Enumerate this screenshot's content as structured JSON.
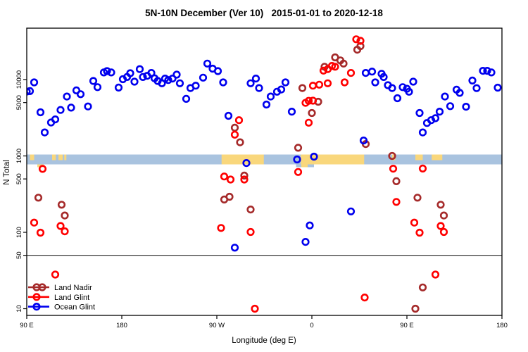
{
  "title": "5N-10N December (Ver 10)   2015-01-01 to 2020-12-18",
  "chart_data": {
    "type": "scatter",
    "title": "5N-10N December (Ver 10)   2015-01-01 to 2020-12-18",
    "xlabel": "Longitude (deg E)",
    "ylabel": "N Total",
    "marker": "open-circle",
    "legend_position": "bottom-left",
    "x_axis": {
      "note": "longitude axis wraps: 90E to 180 to 90W to 0 to 90E to 180; stored as continuous 90..540",
      "domain": [
        90,
        540
      ],
      "ticks": [
        {
          "value": 90,
          "label": "90 E"
        },
        {
          "value": 180,
          "label": "180"
        },
        {
          "value": 270,
          "label": "90 W"
        },
        {
          "value": 360,
          "label": "0"
        },
        {
          "value": 450,
          "label": "90 E"
        },
        {
          "value": 540,
          "label": "180"
        }
      ]
    },
    "y_axis": {
      "scale": "log10",
      "ticks": [
        10,
        50,
        100,
        500,
        1000,
        5000,
        10000
      ],
      "tick_labels": [
        "10",
        "50",
        "100",
        "500",
        "1000",
        "5000",
        "10000"
      ]
    },
    "reference_line_y": 50,
    "map_band": {
      "value_range": [
        775,
        1030
      ],
      "ocean_color": "#a9c3df",
      "land_color": "#f9d77c",
      "land_segments": [
        {
          "from": 93,
          "to": 97,
          "partial": true
        },
        {
          "from": 114,
          "to": 117.5,
          "partial": true
        },
        {
          "from": 120,
          "to": 124,
          "partial": true
        },
        {
          "from": 125.5,
          "to": 127.5,
          "partial": true
        },
        {
          "from": 274.5,
          "to": 314.5,
          "partial": false
        },
        {
          "from": 349.5,
          "to": 409.5,
          "partial": false
        },
        {
          "from": 436,
          "to": 439,
          "partial": true
        },
        {
          "from": 458,
          "to": 465,
          "partial": true
        },
        {
          "from": 473.5,
          "to": 483.5,
          "partial": true
        }
      ],
      "land_bumps": [
        {
          "from": 100,
          "to": 106
        },
        {
          "from": 350,
          "to": 356
        }
      ],
      "ocean_bumps": [
        {
          "from": 345,
          "to": 362
        }
      ]
    },
    "series": [
      {
        "name": "Land Nadir",
        "color": "#a52a2a",
        "points": [
          [
            101,
            284
          ],
          [
            123,
            230
          ],
          [
            126,
            166
          ],
          [
            277,
            269
          ],
          [
            282,
            292
          ],
          [
            287,
            2340
          ],
          [
            292,
            1510
          ],
          [
            296,
            553
          ],
          [
            302,
            199
          ],
          [
            347,
            1280
          ],
          [
            351,
            7740
          ],
          [
            360,
            3650
          ],
          [
            366,
            5130
          ],
          [
            372,
            14700
          ],
          [
            382,
            19500
          ],
          [
            387,
            17800
          ],
          [
            390,
            16200
          ],
          [
            403,
            24600
          ],
          [
            406,
            27400
          ],
          [
            411,
            1430
          ],
          [
            436,
            1000
          ],
          [
            440,
            467
          ],
          [
            460,
            284
          ],
          [
            482,
            230
          ],
          [
            485,
            166
          ],
          [
            465,
            19
          ],
          [
            458,
            10
          ]
        ]
      },
      {
        "name": "Land Glint",
        "color": "#ff0000",
        "points": [
          [
            97,
            134
          ],
          [
            103,
            99
          ],
          [
            105,
            677
          ],
          [
            117,
            28
          ],
          [
            122,
            121
          ],
          [
            126,
            103
          ],
          [
            274,
            114
          ],
          [
            277,
            538
          ],
          [
            283,
            491
          ],
          [
            287,
            1900
          ],
          [
            291,
            2940
          ],
          [
            296,
            491
          ],
          [
            302,
            101
          ],
          [
            306,
            10
          ],
          [
            347,
            616
          ],
          [
            354,
            4950
          ],
          [
            357,
            5270
          ],
          [
            357,
            2720
          ],
          [
            361,
            5290
          ],
          [
            361,
            8310
          ],
          [
            367,
            8560
          ],
          [
            371,
            13100
          ],
          [
            375,
            8930
          ],
          [
            375,
            13700
          ],
          [
            379,
            15100
          ],
          [
            382,
            14700
          ],
          [
            391,
            9180
          ],
          [
            397,
            12200
          ],
          [
            402,
            33700
          ],
          [
            406,
            32100
          ],
          [
            410,
            14
          ],
          [
            437,
            681
          ],
          [
            440,
            250
          ],
          [
            457,
            134
          ],
          [
            462,
            99
          ],
          [
            465,
            684
          ],
          [
            477,
            28
          ],
          [
            482,
            121
          ],
          [
            485,
            101
          ]
        ]
      },
      {
        "name": "Ocean Glint",
        "color": "#0000ee",
        "points": [
          [
            90,
            6960
          ],
          [
            93,
            7060
          ],
          [
            97,
            9180
          ],
          [
            103,
            3730
          ],
          [
            107,
            2030
          ],
          [
            113,
            2740
          ],
          [
            117,
            3010
          ],
          [
            122,
            4000
          ],
          [
            128,
            5990
          ],
          [
            132,
            4290
          ],
          [
            137,
            7210
          ],
          [
            141,
            6430
          ],
          [
            148,
            4450
          ],
          [
            153,
            9580
          ],
          [
            157,
            7960
          ],
          [
            163,
            12400
          ],
          [
            166,
            12900
          ],
          [
            170,
            12400
          ],
          [
            177,
            7850
          ],
          [
            181,
            10100
          ],
          [
            185,
            10800
          ],
          [
            188,
            12100
          ],
          [
            192,
            9380
          ],
          [
            197,
            13700
          ],
          [
            200,
            10800
          ],
          [
            204,
            11200
          ],
          [
            208,
            12200
          ],
          [
            211,
            10400
          ],
          [
            214,
            9580
          ],
          [
            218,
            8930
          ],
          [
            221,
            10300
          ],
          [
            224,
            9860
          ],
          [
            228,
            10300
          ],
          [
            232,
            11600
          ],
          [
            235,
            8930
          ],
          [
            241,
            5590
          ],
          [
            245,
            7740
          ],
          [
            250,
            8310
          ],
          [
            257,
            10600
          ],
          [
            261,
            16200
          ],
          [
            266,
            13900
          ],
          [
            271,
            12900
          ],
          [
            276,
            9180
          ],
          [
            281,
            3350
          ],
          [
            287,
            63
          ],
          [
            298,
            807
          ],
          [
            302,
            8930
          ],
          [
            307,
            10300
          ],
          [
            310,
            7740
          ],
          [
            317,
            4710
          ],
          [
            321,
            5990
          ],
          [
            327,
            6920
          ],
          [
            331,
            7410
          ],
          [
            335,
            9180
          ],
          [
            341,
            3800
          ],
          [
            346,
            900
          ],
          [
            354,
            75
          ],
          [
            358,
            123
          ],
          [
            362,
            980
          ],
          [
            397,
            188
          ],
          [
            409,
            1590
          ],
          [
            411,
            12200
          ],
          [
            417,
            12700
          ],
          [
            420,
            9180
          ],
          [
            426,
            11900
          ],
          [
            428,
            10800
          ],
          [
            432,
            8440
          ],
          [
            436,
            7740
          ],
          [
            441,
            5700
          ],
          [
            446,
            7960
          ],
          [
            450,
            7580
          ],
          [
            452,
            6920
          ],
          [
            456,
            9380
          ],
          [
            462,
            3650
          ],
          [
            465,
            2030
          ],
          [
            469,
            2700
          ],
          [
            473,
            2940
          ],
          [
            477,
            3120
          ],
          [
            481,
            3800
          ],
          [
            486,
            5990
          ],
          [
            491,
            4480
          ],
          [
            497,
            7360
          ],
          [
            500,
            6700
          ],
          [
            506,
            4410
          ],
          [
            512,
            9700
          ],
          [
            516,
            7720
          ],
          [
            522,
            13000
          ],
          [
            526,
            13000
          ],
          [
            530,
            12400
          ],
          [
            536,
            7830
          ]
        ]
      }
    ]
  }
}
